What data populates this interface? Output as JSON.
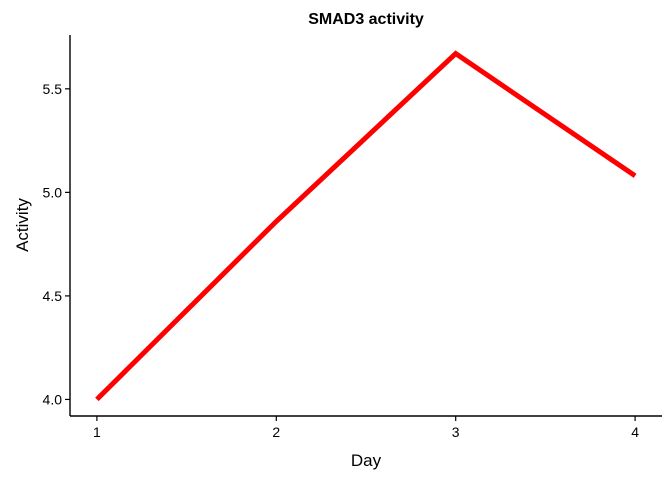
{
  "chart_data": {
    "type": "line",
    "title": "SMAD3 activity",
    "xlabel": "Day",
    "ylabel": "Activity",
    "x": [
      1,
      2,
      3,
      4
    ],
    "series": [
      {
        "values": [
          4.0,
          4.86,
          5.67,
          5.08
        ]
      }
    ],
    "xticks": [
      "1",
      "2",
      "3",
      "4"
    ],
    "yticks": [
      "4.0",
      "4.5",
      "5.0",
      "5.5"
    ],
    "xlim": [
      0.85,
      4.15
    ],
    "ylim": [
      3.92,
      5.76
    ],
    "grid": false,
    "legend": "none",
    "line_color": "#ff0000"
  }
}
